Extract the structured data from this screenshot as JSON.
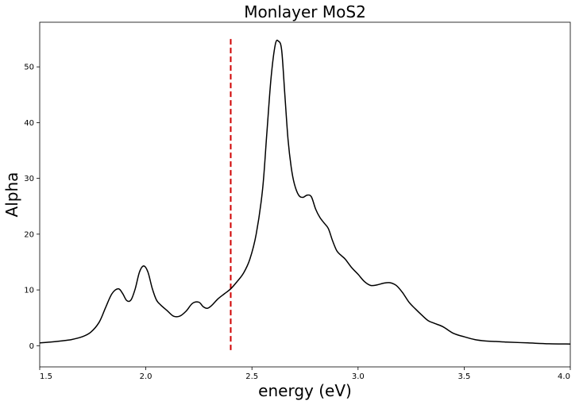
{
  "chart_data": {
    "type": "line",
    "title": "Monlayer MoS2",
    "xlabel": "energy (eV)",
    "ylabel": "Alpha",
    "xlim": [
      1.5,
      4.0
    ],
    "ylim": [
      -3.8,
      58
    ],
    "xticks": [
      1.5,
      2.0,
      2.5,
      3.0,
      3.5,
      4.0
    ],
    "xtick_labels": [
      "1.5",
      "2.0",
      "2.5",
      "3.0",
      "3.5",
      "4.0"
    ],
    "yticks": [
      0,
      10,
      20,
      30,
      40,
      50
    ],
    "ytick_labels": [
      "0",
      "10",
      "20",
      "30",
      "40",
      "50"
    ],
    "grid": false,
    "series": [
      {
        "color": "#000000",
        "x": [
          1.5,
          1.55,
          1.6,
          1.65,
          1.7,
          1.74,
          1.78,
          1.81,
          1.84,
          1.87,
          1.89,
          1.91,
          1.93,
          1.95,
          1.97,
          1.99,
          2.01,
          2.03,
          2.05,
          2.07,
          2.1,
          2.13,
          2.16,
          2.19,
          2.22,
          2.25,
          2.27,
          2.29,
          2.31,
          2.34,
          2.37,
          2.4,
          2.43,
          2.46,
          2.49,
          2.52,
          2.55,
          2.57,
          2.59,
          2.61,
          2.625,
          2.64,
          2.655,
          2.67,
          2.685,
          2.7,
          2.72,
          2.74,
          2.76,
          2.78,
          2.8,
          2.82,
          2.84,
          2.86,
          2.88,
          2.9,
          2.92,
          2.94,
          2.97,
          3.0,
          3.03,
          3.06,
          3.09,
          3.12,
          3.15,
          3.18,
          3.21,
          3.24,
          3.27,
          3.3,
          3.33,
          3.36,
          3.4,
          3.45,
          3.5,
          3.55,
          3.6,
          3.65,
          3.7,
          3.8,
          3.9,
          4.0
        ],
        "y": [
          0.5,
          0.65,
          0.85,
          1.1,
          1.6,
          2.4,
          4.2,
          6.8,
          9.3,
          10.2,
          9.4,
          8.1,
          8.2,
          10.2,
          13.2,
          14.3,
          13.2,
          10.3,
          8.2,
          7.3,
          6.3,
          5.3,
          5.3,
          6.2,
          7.6,
          7.8,
          7.0,
          6.7,
          7.2,
          8.4,
          9.3,
          10.2,
          11.5,
          13.0,
          15.5,
          20.0,
          28.0,
          38.0,
          48.0,
          54.0,
          54.6,
          53.0,
          45.0,
          37.0,
          32.0,
          29.0,
          27.0,
          26.6,
          27.0,
          26.7,
          24.5,
          23.0,
          22.0,
          21.0,
          18.8,
          17.0,
          16.2,
          15.5,
          14.0,
          12.8,
          11.5,
          10.8,
          10.9,
          11.2,
          11.3,
          10.8,
          9.5,
          7.8,
          6.6,
          5.5,
          4.5,
          4.0,
          3.4,
          2.2,
          1.6,
          1.1,
          0.85,
          0.75,
          0.65,
          0.5,
          0.35,
          0.3
        ]
      }
    ],
    "vline": {
      "x": 2.4,
      "y_start": -0.8,
      "y_end": 55,
      "color": "#d00000",
      "style": "dashed"
    }
  }
}
